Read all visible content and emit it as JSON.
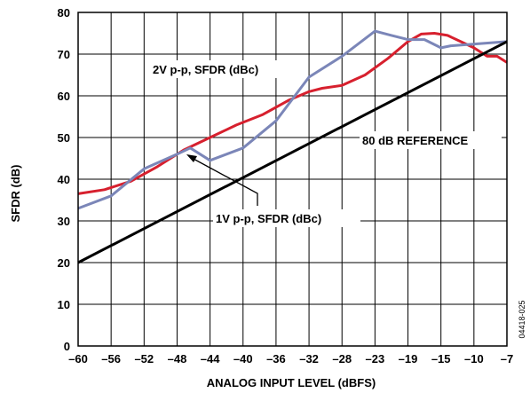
{
  "chart_data": {
    "type": "line",
    "xlabel": "ANALOG INPUT LEVEL (dBFS)",
    "ylabel": "SFDR (dB)",
    "x_ticks": [
      "–60",
      "–56",
      "–52",
      "–48",
      "–44",
      "–40",
      "–36",
      "–32",
      "–28",
      "–23",
      "–19",
      "–15",
      "–10",
      "–7"
    ],
    "y_ticks": [
      "0",
      "10",
      "20",
      "30",
      "40",
      "50",
      "60",
      "70",
      "80"
    ],
    "ylim": [
      0,
      80
    ],
    "grid": true,
    "series": [
      {
        "name": "2V p-p, SFDR (dBc)",
        "color": "#d7202e",
        "points": [
          [
            0,
            36.5
          ],
          [
            0.8,
            37.5
          ],
          [
            1.6,
            39.5
          ],
          [
            2.4,
            43
          ],
          [
            3.2,
            47
          ],
          [
            4,
            50
          ],
          [
            4.8,
            53
          ],
          [
            5.6,
            55.5
          ],
          [
            6.4,
            59
          ],
          [
            7,
            61
          ],
          [
            7.4,
            61.8
          ],
          [
            8,
            62.5
          ],
          [
            8.7,
            65
          ],
          [
            9.4,
            69
          ],
          [
            10,
            73
          ],
          [
            10.4,
            74.8
          ],
          [
            10.8,
            75
          ],
          [
            11.2,
            74.5
          ],
          [
            11.6,
            73
          ],
          [
            12,
            71.5
          ],
          [
            12.4,
            69.5
          ],
          [
            12.7,
            69.5
          ],
          [
            13,
            68
          ]
        ]
      },
      {
        "name": "1V p-p, SFDR (dBc)",
        "color": "#7b86b8",
        "points": [
          [
            0,
            33
          ],
          [
            1,
            36
          ],
          [
            2,
            42.5
          ],
          [
            3,
            46
          ],
          [
            3.4,
            47.5
          ],
          [
            4,
            44.5
          ],
          [
            5,
            47.5
          ],
          [
            6,
            54
          ],
          [
            7,
            64.5
          ],
          [
            8,
            69.5
          ],
          [
            9,
            75.5
          ],
          [
            9.5,
            74.5
          ],
          [
            10,
            73.5
          ],
          [
            10.5,
            73.5
          ],
          [
            11,
            71.5
          ],
          [
            11.3,
            72
          ],
          [
            13,
            73
          ]
        ]
      },
      {
        "name": "80 dB REFERENCE",
        "color": "#000000",
        "points": [
          [
            0,
            20
          ],
          [
            13,
            73
          ]
        ]
      }
    ],
    "annotations": {
      "label_2v": "2V p-p, SFDR (dBc)",
      "label_1v": "1V p-p, SFDR (dBc)",
      "label_ref": "80 dB REFERENCE"
    },
    "figure_id": "04418-025"
  }
}
